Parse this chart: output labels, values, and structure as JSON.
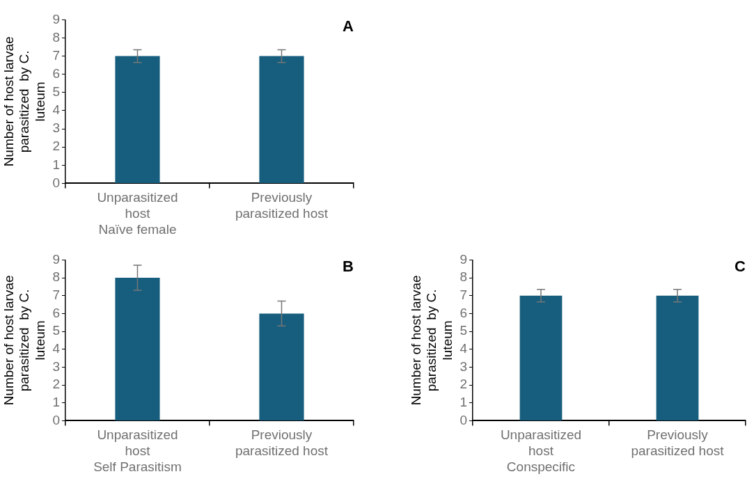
{
  "chart_data": [
    {
      "type": "bar",
      "title": "A",
      "ylabel": "Number of host larvae parasitized  by C. luteum",
      "xlabel": "Naïve female",
      "categories": [
        "Unparasitized host",
        "Previously parasitized host"
      ],
      "values": [
        7,
        7
      ],
      "errors": [
        0.35,
        0.35
      ],
      "color": "#175e7e",
      "ylim": [
        0,
        9
      ],
      "yticks": [
        0,
        1,
        2,
        3,
        4,
        5,
        6,
        7,
        8,
        9
      ],
      "grid": false,
      "legend": false
    },
    {
      "type": "bar",
      "title": "B",
      "ylabel": "Number of host larvae parasitized  by C. luteum",
      "xlabel": "Self Parasitism",
      "categories": [
        "Unparasitized host",
        "Previously parasitized host"
      ],
      "values": [
        8,
        6
      ],
      "errors": [
        0.7,
        0.7
      ],
      "color": "#175e7e",
      "ylim": [
        0,
        9
      ],
      "yticks": [
        0,
        1,
        2,
        3,
        4,
        5,
        6,
        7,
        8,
        9
      ],
      "grid": false,
      "legend": false
    },
    {
      "type": "bar",
      "title": "C",
      "ylabel": "Number of host larvae parasitized  by C. luteum",
      "xlabel": "Conspecific",
      "categories": [
        "Unparasitized host",
        "Previously parasitized host"
      ],
      "values": [
        7,
        7
      ],
      "errors": [
        0.35,
        0.35
      ],
      "color": "#175e7e",
      "ylim": [
        0,
        9
      ],
      "yticks": [
        0,
        1,
        2,
        3,
        4,
        5,
        6,
        7,
        8,
        9
      ],
      "grid": false,
      "legend": false
    }
  ]
}
